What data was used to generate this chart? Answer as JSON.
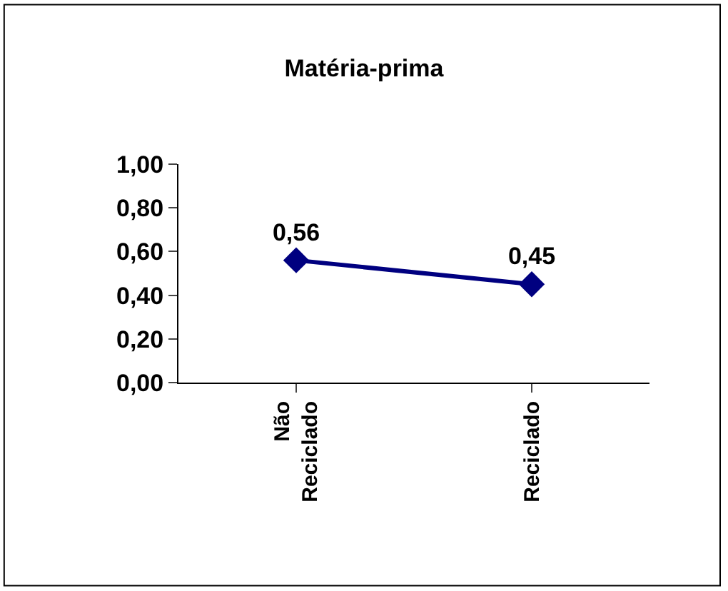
{
  "chart_data": {
    "type": "line",
    "title": "Matéria-prima",
    "categories": [
      "Não Reciclado",
      "Reciclado"
    ],
    "series": [
      {
        "color": "#000080",
        "values": [
          0.56,
          0.45
        ],
        "value_labels": [
          "0,56",
          "0,45"
        ]
      }
    ],
    "ylim": [
      0,
      1
    ],
    "yticks": [
      {
        "value": 0,
        "label": "0,00"
      },
      {
        "value": 0.2,
        "label": "0,20"
      },
      {
        "value": 0.4,
        "label": "0,40"
      },
      {
        "value": 0.6,
        "label": "0,60"
      },
      {
        "value": 0.8,
        "label": "0,80"
      },
      {
        "value": 1,
        "label": "1,00"
      }
    ],
    "legend": false,
    "marker": "diamond",
    "line_style": "solid"
  }
}
